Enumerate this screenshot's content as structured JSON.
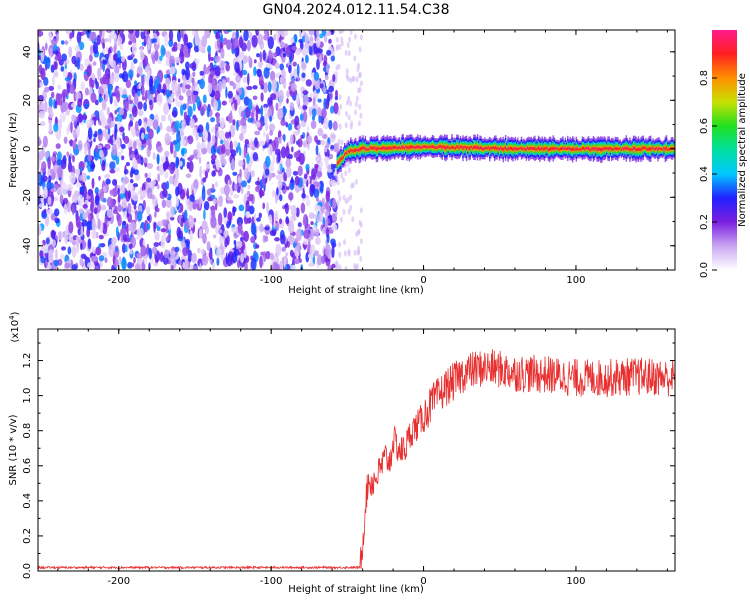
{
  "title": "GN04.2024.012.11.54.C38",
  "chart_data": [
    {
      "type": "heatmap",
      "xlabel": "Height of straight line (km)",
      "ylabel": "Frequency (Hz)",
      "xlim": [
        -253,
        165
      ],
      "ylim": [
        -50,
        49
      ],
      "x_ticks": [
        -200,
        -100,
        0,
        100
      ],
      "y_ticks": [
        -40,
        -20,
        0,
        20,
        40
      ],
      "colorbar": {
        "label": "Normalized spectral amplitude",
        "range": [
          0,
          1
        ],
        "ticks": [
          "0.0",
          "0.2",
          "0.4",
          "0.6",
          "0.8"
        ],
        "colors": [
          "#ffffff",
          "#c9a6f2",
          "#7a1fe0",
          "#2020ff",
          "#00c8ff",
          "#00e0a0",
          "#20e020",
          "#c8e000",
          "#ff9000",
          "#ff2020",
          "#ff1a8c"
        ]
      },
      "noise_region_x": [
        -253,
        -57
      ],
      "signal": {
        "x_range": [
          -57,
          165
        ],
        "frequency_hz": [
          [
            -57,
            -6
          ],
          [
            -50,
            -1
          ],
          [
            -40,
            0
          ],
          [
            0,
            0.8
          ],
          [
            60,
            0
          ],
          [
            100,
            0
          ],
          [
            165,
            0
          ]
        ],
        "peak_amplitude": 0.95
      }
    },
    {
      "type": "line",
      "xlabel": "Height of straight line (km)",
      "ylabel": "SNR (10 * v/v)",
      "multiplier": "x10^4",
      "xlim": [
        -253,
        165
      ],
      "ylim": [
        0,
        1.38
      ],
      "x_ticks": [
        -200,
        -100,
        0,
        100
      ],
      "y_ticks": [
        0.0,
        0.2,
        0.4,
        0.6,
        0.8,
        1.0,
        1.2
      ],
      "color": "#e83030",
      "series": [
        {
          "x": [
            -253,
            -200,
            -150,
            -100,
            -60,
            -42,
            -40,
            -38,
            -36,
            -34,
            -30,
            -25,
            -22,
            -20,
            -18,
            -15,
            -12,
            -10,
            -8,
            -5,
            0,
            5,
            10,
            15,
            20,
            25,
            30,
            40,
            50,
            60,
            80,
            100,
            120,
            140,
            165
          ],
          "values": [
            0.02,
            0.02,
            0.02,
            0.02,
            0.02,
            0.02,
            0.15,
            0.4,
            0.52,
            0.5,
            0.55,
            0.65,
            0.62,
            0.75,
            0.72,
            0.68,
            0.7,
            0.75,
            0.8,
            0.82,
            0.88,
            0.95,
            1.0,
            1.05,
            1.08,
            1.12,
            1.14,
            1.16,
            1.15,
            1.13,
            1.12,
            1.1,
            1.1,
            1.11,
            1.1
          ]
        }
      ]
    }
  ]
}
